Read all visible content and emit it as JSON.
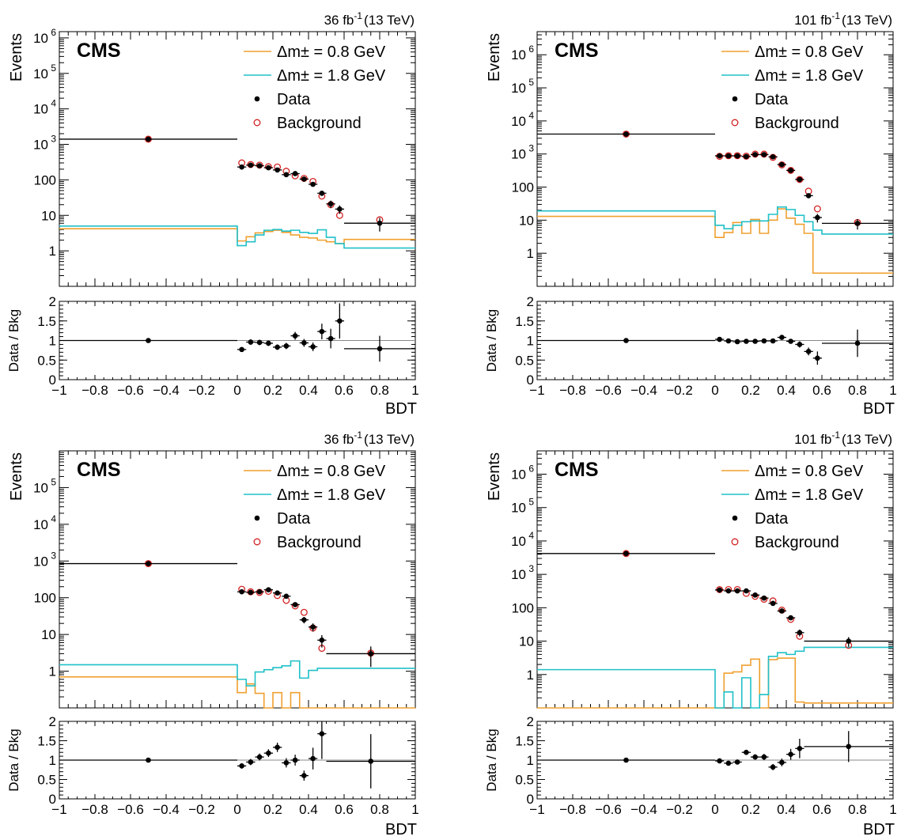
{
  "figure": {
    "brand": "CMS",
    "ylabel_main": "Events",
    "ylabel_ratio": "Data / Bkg",
    "xlabel": "BDT",
    "ratio_ticks": [
      "0",
      "0.5",
      "1",
      "1.5",
      "2"
    ],
    "x_ticks": [
      "−1",
      "−0.8",
      "−0.6",
      "−0.4",
      "−0.2",
      "0",
      "0.2",
      "0.4",
      "0.6",
      "0.8",
      "1"
    ],
    "legend": {
      "signal1": "Δm± = 0.8 GeV",
      "signal2": "Δm± = 1.8 GeV",
      "data": "Data",
      "background": "Background"
    },
    "colors": {
      "signal1": "#f0a030",
      "signal2": "#20c0c8",
      "data": "#000000",
      "background": "#d42020"
    }
  },
  "chart_data": [
    {
      "type": "line",
      "panel": "top-left",
      "lumi": "36 fb",
      "lumi_exp": "-1",
      "energy": "(13 TeV)",
      "xlabel": "BDT",
      "ylabel": "Events",
      "xlim": [
        -1,
        1
      ],
      "ylim": [
        0.1,
        1500000
      ],
      "log_y": true,
      "y_ticks": [
        1,
        10,
        100,
        1000,
        10000,
        100000,
        1000000
      ],
      "legend_position": "top-right",
      "bin_edges": [
        -1,
        0,
        0.05,
        0.1,
        0.15,
        0.2,
        0.25,
        0.3,
        0.35,
        0.4,
        0.45,
        0.5,
        0.55,
        0.6,
        1
      ],
      "data": [
        1400,
        230,
        260,
        250,
        220,
        190,
        140,
        150,
        105,
        75,
        42,
        21,
        15,
        6
      ],
      "data_err": [
        40,
        15,
        16,
        16,
        15,
        14,
        12,
        12,
        10,
        9,
        7,
        5,
        4,
        2.5
      ],
      "background": [
        1400,
        300,
        270,
        260,
        235,
        230,
        175,
        130,
        110,
        90,
        35,
        20,
        10,
        7.5
      ],
      "ratio": [
        1.0,
        0.77,
        0.96,
        0.95,
        0.93,
        0.83,
        0.86,
        1.12,
        0.94,
        0.84,
        1.23,
        1.05,
        1.5,
        0.79
      ],
      "ratio_err": [
        0.03,
        0.06,
        0.07,
        0.07,
        0.07,
        0.07,
        0.08,
        0.1,
        0.1,
        0.11,
        0.2,
        0.25,
        0.45,
        0.33
      ],
      "series": [
        {
          "name": "Δm± = 0.8 GeV",
          "values": [
            4.2,
            1.9,
            2.5,
            3.2,
            3.5,
            3.8,
            3.3,
            2.8,
            2.4,
            2.3,
            2.0,
            1.8,
            1.6,
            2.1
          ]
        },
        {
          "name": "Δm± = 1.8 GeV",
          "values": [
            5.0,
            1.4,
            1.8,
            2.8,
            3.8,
            4.0,
            3.6,
            3.8,
            3.3,
            3.1,
            3.9,
            2.4,
            1.6,
            1.2
          ]
        }
      ]
    },
    {
      "type": "line",
      "panel": "top-right",
      "lumi": "101 fb",
      "lumi_exp": "-1",
      "energy": "(13 TeV)",
      "xlabel": "BDT",
      "ylabel": "Events",
      "xlim": [
        -1,
        1
      ],
      "ylim": [
        0.1,
        5000000
      ],
      "log_y": true,
      "y_ticks": [
        1,
        10,
        100,
        1000,
        10000,
        100000,
        1000000
      ],
      "legend_position": "top-right",
      "bin_edges": [
        -1,
        0,
        0.05,
        0.1,
        0.15,
        0.2,
        0.25,
        0.3,
        0.35,
        0.4,
        0.45,
        0.5,
        0.55,
        0.6,
        1
      ],
      "data": [
        4000,
        880,
        880,
        880,
        840,
        960,
        960,
        820,
        480,
        320,
        170,
        55,
        12,
        8
      ],
      "data_err": [
        70,
        30,
        30,
        30,
        29,
        31,
        31,
        29,
        22,
        18,
        13,
        7,
        3.5,
        2.8
      ],
      "background": [
        4000,
        850,
        890,
        890,
        860,
        990,
        990,
        790,
        470,
        320,
        170,
        75,
        22,
        8.5
      ],
      "ratio": [
        1.0,
        1.03,
        0.99,
        0.97,
        0.98,
        0.98,
        0.99,
        0.99,
        1.08,
        0.98,
        0.9,
        0.72,
        0.55,
        0.93
      ],
      "ratio_err": [
        0.02,
        0.04,
        0.04,
        0.04,
        0.04,
        0.04,
        0.04,
        0.04,
        0.05,
        0.06,
        0.08,
        0.1,
        0.17,
        0.35
      ],
      "series": [
        {
          "name": "Δm± = 0.8 GeV",
          "values": [
            13,
            3.0,
            4.2,
            8.5,
            4.0,
            10.5,
            4.0,
            10.0,
            22.0,
            11.5,
            7.5,
            4.0,
            0.25,
            0.25
          ]
        },
        {
          "name": "Δm± = 1.8 GeV",
          "values": [
            19,
            7.0,
            5.5,
            7.0,
            9.0,
            9.5,
            9.5,
            15.0,
            25.0,
            21.0,
            14.0,
            9.0,
            5.0,
            3.8
          ]
        }
      ]
    },
    {
      "type": "line",
      "panel": "bottom-left",
      "lumi": "36 fb",
      "lumi_exp": "-1",
      "energy": "(13 TeV)",
      "xlabel": "BDT",
      "ylabel": "Events",
      "xlim": [
        -1,
        1
      ],
      "ylim": [
        0.1,
        1000000
      ],
      "log_y": true,
      "y_ticks": [
        1,
        10,
        100,
        1000,
        10000,
        100000
      ],
      "legend_position": "top-right",
      "bin_edges": [
        -1,
        0,
        0.05,
        0.1,
        0.15,
        0.2,
        0.25,
        0.3,
        0.35,
        0.4,
        0.45,
        0.5,
        1
      ],
      "data": [
        850,
        145,
        140,
        145,
        165,
        135,
        110,
        65,
        25,
        16,
        7,
        3
      ],
      "data_err": [
        30,
        12,
        12,
        12,
        13,
        12,
        11,
        8,
        5,
        4,
        2.6,
        1.7
      ],
      "background": [
        850,
        170,
        145,
        140,
        150,
        115,
        85,
        60,
        40,
        15,
        4.2,
        3.1
      ],
      "ratio": [
        1.0,
        0.85,
        0.95,
        1.08,
        1.18,
        1.33,
        0.93,
        1.0,
        0.6,
        1.04,
        1.68,
        0.97
      ],
      "ratio_err": [
        0.04,
        0.07,
        0.08,
        0.09,
        0.1,
        0.12,
        0.12,
        0.14,
        0.13,
        0.28,
        0.65,
        0.7
      ],
      "series": [
        {
          "name": "Δm± = 0.8 GeV",
          "values": [
            0.7,
            0.26,
            0.45,
            0.25,
            0.1,
            0.26,
            0.1,
            0.26,
            0.1,
            0.1,
            0.1,
            0.1
          ]
        },
        {
          "name": "Δm± = 1.8 GeV",
          "values": [
            1.5,
            0.6,
            0.4,
            0.95,
            1.1,
            1.25,
            1.4,
            1.9,
            0.65,
            1.05,
            1.2,
            1.2
          ]
        }
      ]
    },
    {
      "type": "line",
      "panel": "bottom-right",
      "lumi": "101 fb",
      "lumi_exp": "-1",
      "energy": "(13 TeV)",
      "xlabel": "BDT",
      "ylabel": "Events",
      "xlim": [
        -1,
        1
      ],
      "ylim": [
        0.1,
        5000000
      ],
      "log_y": true,
      "y_ticks": [
        1,
        10,
        100,
        1000,
        10000,
        100000,
        1000000
      ],
      "legend_position": "top-right",
      "bin_edges": [
        -1,
        0,
        0.05,
        0.1,
        0.15,
        0.2,
        0.25,
        0.3,
        0.35,
        0.4,
        0.45,
        0.5,
        1
      ],
      "data": [
        4200,
        340,
        320,
        320,
        320,
        240,
        195,
        135,
        80,
        50,
        18,
        10
      ],
      "data_err": [
        65,
        18,
        18,
        18,
        18,
        16,
        14,
        12,
        9,
        7,
        4.2,
        3.2
      ],
      "background": [
        4200,
        350,
        350,
        350,
        270,
        220,
        180,
        160,
        85,
        45,
        14,
        7.5
      ],
      "ratio": [
        1.0,
        0.98,
        0.92,
        0.95,
        1.2,
        1.08,
        1.08,
        0.82,
        0.94,
        1.15,
        1.3,
        1.35
      ],
      "ratio_err": [
        0.02,
        0.05,
        0.05,
        0.05,
        0.06,
        0.07,
        0.08,
        0.08,
        0.1,
        0.14,
        0.25,
        0.4
      ],
      "series": [
        {
          "name": "Δm± = 0.8 GeV",
          "values": [
            0.1,
            0.1,
            1.1,
            1.2,
            1.9,
            2.9,
            0.1,
            2.8,
            3.1,
            3.1,
            0.15,
            0.14
          ]
        },
        {
          "name": "Δm± = 1.8 GeV",
          "values": [
            1.4,
            0.1,
            0.3,
            0.1,
            0.8,
            0.1,
            0.25,
            3.5,
            4.5,
            4.0,
            5.0,
            6.5
          ]
        }
      ]
    }
  ]
}
